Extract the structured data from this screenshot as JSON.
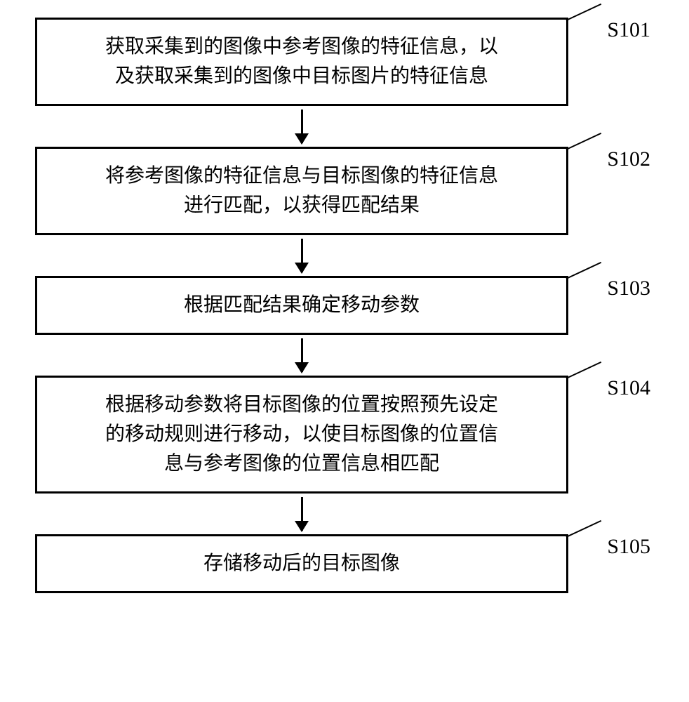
{
  "flowchart": {
    "type": "flowchart",
    "background_color": "#ffffff",
    "box_border_color": "#000000",
    "box_border_width": 3,
    "arrow_color": "#000000",
    "font_family": "SimSun",
    "text_fontsize": 28,
    "label_fontsize": 30,
    "steps": [
      {
        "id": "S101",
        "text_line1": "获取采集到的图像中参考图像的特征信息，以",
        "text_line2": "及获取采集到的图像中目标图片的特征信息",
        "lines": 2
      },
      {
        "id": "S102",
        "text_line1": "将参考图像的特征信息与目标图像的特征信息",
        "text_line2": "进行匹配，以获得匹配结果",
        "lines": 2
      },
      {
        "id": "S103",
        "text_line1": "根据匹配结果确定移动参数",
        "lines": 1
      },
      {
        "id": "S104",
        "text_line1": "根据移动参数将目标图像的位置按照预先设定",
        "text_line2": "的移动规则进行移动，以使目标图像的位置信",
        "text_line3": "息与参考图像的位置信息相匹配",
        "lines": 3
      },
      {
        "id": "S105",
        "text_line1": "存储移动后的目标图像",
        "lines": 1
      }
    ]
  }
}
